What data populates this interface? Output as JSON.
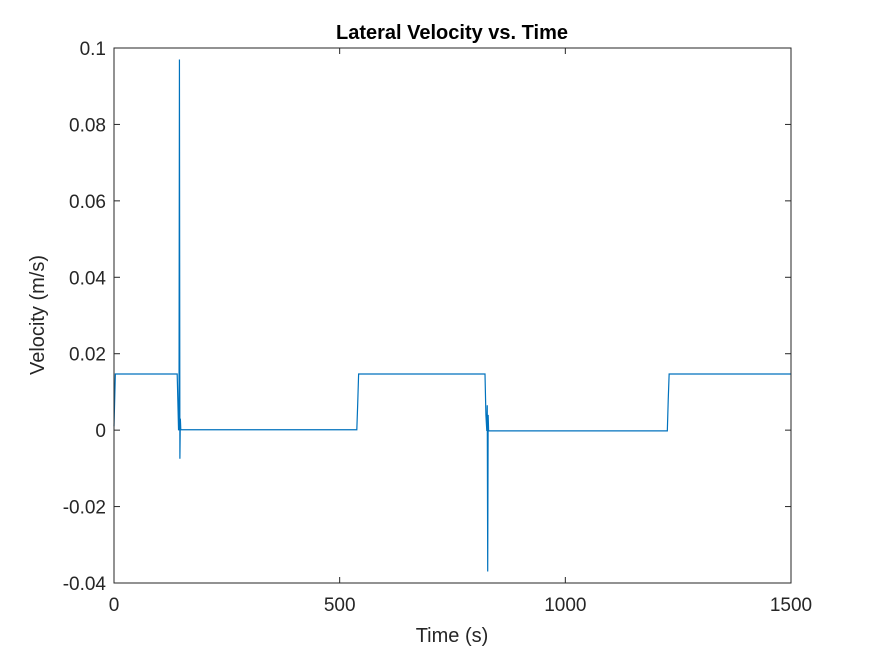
{
  "chart_data": {
    "type": "line",
    "title": "Lateral Velocity vs. Time",
    "xlabel": "Time (s)",
    "ylabel": "Velocity (m/s)",
    "xlim": [
      0,
      1500
    ],
    "ylim": [
      -0.04,
      0.1
    ],
    "xticks": [
      0,
      500,
      1000,
      1500
    ],
    "xtick_labels": [
      "0",
      "500",
      "1000",
      "1500"
    ],
    "yticks": [
      -0.04,
      -0.02,
      0,
      0.02,
      0.04,
      0.06,
      0.08,
      0.1
    ],
    "ytick_labels": [
      "-0.04",
      "-0.02",
      "0",
      "0.02",
      "0.04",
      "0.06",
      "0.08",
      "0.1"
    ],
    "grid": false,
    "box": true,
    "line_color": "#0072BD",
    "series": [
      {
        "x": [
          0,
          3,
          140,
          142,
          143,
          144,
          145,
          146,
          147,
          148,
          149,
          538,
          540,
          542,
          822,
          824,
          826,
          827,
          828,
          829,
          830,
          831,
          1226,
          1228,
          1230,
          1500
        ],
        "y": [
          0.001,
          0.0147,
          0.0147,
          0.005,
          0.0001,
          0.0001,
          0.097,
          -0.0075,
          0.003,
          0.0001,
          0.0001,
          0.0001,
          0.007,
          0.0147,
          0.0147,
          0.004,
          -0.0002,
          0.0065,
          -0.037,
          0.004,
          -0.0002,
          -0.0002,
          -0.0002,
          0.008,
          0.0147,
          0.0147
        ]
      }
    ]
  }
}
